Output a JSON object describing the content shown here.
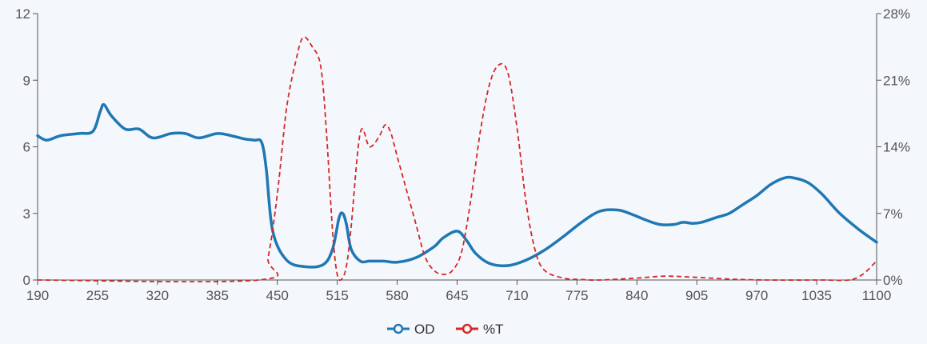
{
  "chart_data": {
    "type": "line",
    "title": "",
    "xlabel": "",
    "ylabel": "",
    "xlim": [
      190,
      1100
    ],
    "x_ticks": [
      "190",
      "255",
      "320",
      "385",
      "450",
      "515",
      "580",
      "645",
      "710",
      "775",
      "840",
      "905",
      "970",
      "1035",
      "1100"
    ],
    "y_left": {
      "lim": [
        0,
        12
      ],
      "ticks": [
        "0",
        "3",
        "6",
        "9",
        "12"
      ]
    },
    "y_right": {
      "lim": [
        0,
        28
      ],
      "ticks": [
        "0%",
        "7%",
        "14%",
        "21%",
        "28%"
      ]
    },
    "legend_position": "bottom-center",
    "grid": false,
    "series": [
      {
        "name": "OD",
        "axis": "left",
        "color": "#1f78b4",
        "style": "solid",
        "x": [
          190,
          200,
          215,
          235,
          250,
          258,
          262,
          270,
          285,
          300,
          315,
          335,
          350,
          365,
          385,
          400,
          415,
          425,
          433,
          438,
          445,
          460,
          480,
          500,
          510,
          517,
          521,
          525,
          530,
          540,
          550,
          565,
          580,
          600,
          620,
          630,
          645,
          655,
          665,
          680,
          700,
          720,
          740,
          760,
          780,
          800,
          820,
          835,
          850,
          865,
          880,
          890,
          900,
          910,
          925,
          940,
          955,
          970,
          985,
          1000,
          1010,
          1025,
          1040,
          1060,
          1080,
          1100
        ],
        "y": [
          6.5,
          6.3,
          6.5,
          6.6,
          6.7,
          7.6,
          7.9,
          7.4,
          6.8,
          6.8,
          6.4,
          6.6,
          6.6,
          6.4,
          6.6,
          6.5,
          6.35,
          6.3,
          6.2,
          5.0,
          2.2,
          0.9,
          0.6,
          0.7,
          1.4,
          2.8,
          3.0,
          2.5,
          1.4,
          0.85,
          0.85,
          0.85,
          0.8,
          1.0,
          1.5,
          1.9,
          2.2,
          1.8,
          1.2,
          0.75,
          0.65,
          0.9,
          1.35,
          1.95,
          2.6,
          3.1,
          3.15,
          2.95,
          2.7,
          2.5,
          2.5,
          2.6,
          2.55,
          2.6,
          2.8,
          3.0,
          3.4,
          3.8,
          4.3,
          4.6,
          4.6,
          4.4,
          3.9,
          3.0,
          2.3,
          1.7
        ]
      },
      {
        "name": "%T",
        "axis": "right",
        "color": "#d62728",
        "style": "dashed",
        "x": [
          190,
          430,
          440,
          450,
          460,
          470,
          478,
          488,
          497,
          503,
          510,
          515,
          520,
          525,
          530,
          540,
          550,
          560,
          567,
          573,
          580,
          590,
          600,
          610,
          620,
          630,
          640,
          650,
          660,
          670,
          680,
          690,
          700,
          710,
          720,
          730,
          740,
          760,
          780,
          800,
          840,
          870,
          900,
          940,
          980,
          1040,
          1070,
          1085,
          1100
        ],
        "y": [
          0,
          0,
          2.4,
          9.0,
          18.0,
          23.0,
          25.5,
          24.5,
          22.5,
          16.0,
          5.0,
          0.6,
          0.1,
          1.5,
          5.5,
          15.5,
          14.0,
          15.0,
          16.3,
          15.5,
          13.0,
          9.5,
          6.0,
          2.5,
          1.0,
          0.6,
          1.0,
          3.0,
          8.5,
          15.5,
          20.5,
          22.6,
          21.8,
          16.0,
          8.0,
          3.0,
          1.0,
          0.2,
          0.05,
          0,
          0.2,
          0.4,
          0.3,
          0.1,
          0,
          0,
          0,
          0.6,
          2.0
        ]
      }
    ]
  }
}
